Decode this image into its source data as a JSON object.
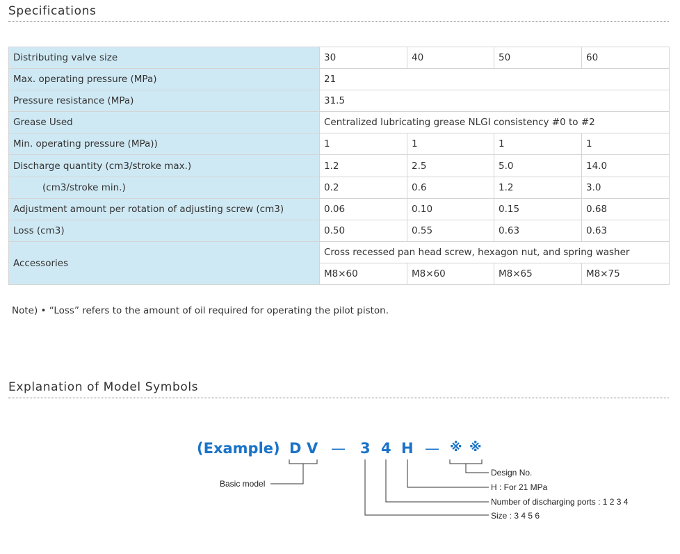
{
  "specifications": {
    "title": "Specifications",
    "rows": [
      {
        "label": "Distributing valve size",
        "cells": [
          "30",
          "40",
          "50",
          "60"
        ]
      },
      {
        "label": "Max. operating pressure (MPa)",
        "value": "21"
      },
      {
        "label": "Pressure resistance (MPa)",
        "value": "31.5"
      },
      {
        "label": "Grease Used",
        "value": "Centralized lubricating grease NLGI consistency  #0 to #2"
      },
      {
        "label": "Min. operating pressure (MPa))",
        "cells": [
          "1",
          "1",
          "1",
          "1"
        ]
      },
      {
        "label": "Discharge quantity (cm3/stroke max.)",
        "cells": [
          "1.2",
          "2.5",
          "5.0",
          "14.0"
        ]
      },
      {
        "label": "(cm3/stroke min.)",
        "cells": [
          "0.2",
          "0.6",
          "1.2",
          "3.0"
        ]
      },
      {
        "label": "Adjustment amount per rotation of adjusting screw (cm3)",
        "cells": [
          "0.06",
          "0.10",
          "0.15",
          "0.68"
        ]
      },
      {
        "label": "Loss (cm3)",
        "cells": [
          "0.50",
          "0.55",
          "0.63",
          "0.63"
        ]
      },
      {
        "label": "Accessories",
        "value": "Cross recessed pan head screw, hexagon nut, and spring washer",
        "cells": [
          "M8×60",
          "M8×60",
          "M8×65",
          "M8×75"
        ]
      }
    ],
    "note": "Note) • “Loss” refers to the amount of oil required for operating the pilot piston."
  },
  "model_symbols": {
    "title": "Explanation of Model Symbols",
    "example_label": "(Example)",
    "symbols": [
      "D",
      "V",
      "—",
      "3",
      "4",
      "H",
      "—",
      "※",
      "※"
    ],
    "labels": {
      "basic_model": "Basic model",
      "design_no": "Design No.",
      "h_pressure": "H : For 21 MPa",
      "ports": "Number of discharging ports : 1 2 3 4",
      "size": "Size : 3 4 5 6"
    },
    "accent_color": "#1a73c8"
  }
}
